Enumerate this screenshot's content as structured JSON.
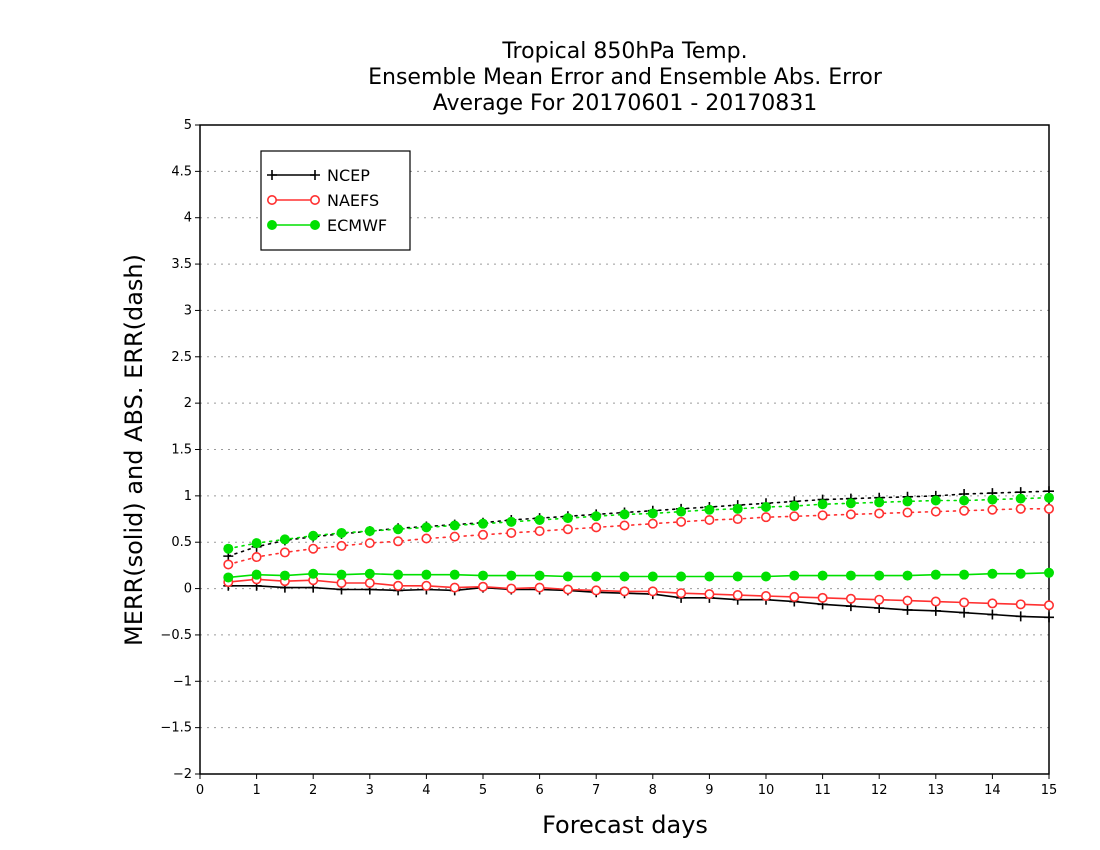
{
  "chart_data": {
    "type": "line",
    "title": [
      "Tropical 850hPa Temp.",
      "Ensemble Mean Error and Ensemble Abs. Error",
      "Average For 20170601 - 20170831"
    ],
    "xlabel": "Forecast days",
    "ylabel": "MERR(solid) and ABS. ERR(dash)",
    "xlim": [
      0,
      15
    ],
    "ylim": [
      -2,
      5
    ],
    "xticks": [
      0,
      1,
      2,
      3,
      4,
      5,
      6,
      7,
      8,
      9,
      10,
      11,
      12,
      13,
      14,
      15
    ],
    "yticks": [
      -2,
      -1.5,
      -1,
      -0.5,
      0,
      0.5,
      1,
      1.5,
      2,
      2.5,
      3,
      3.5,
      4,
      4.5,
      5
    ],
    "grid": "horizontal dotted",
    "legend_position": "top-left",
    "x": [
      0.5,
      1,
      1.5,
      2,
      2.5,
      3,
      3.5,
      4,
      4.5,
      5,
      5.5,
      6,
      6.5,
      7,
      7.5,
      8,
      8.5,
      9,
      9.5,
      10,
      10.5,
      11,
      11.5,
      12,
      12.5,
      13,
      13.5,
      14,
      14.5,
      15
    ],
    "series": [
      {
        "name": "NCEP",
        "color": "#000000",
        "marker": "plus",
        "merr": [
          0.03,
          0.03,
          0.01,
          0.01,
          -0.01,
          -0.01,
          -0.02,
          -0.01,
          -0.02,
          0.01,
          -0.01,
          -0.01,
          -0.02,
          -0.04,
          -0.05,
          -0.06,
          -0.1,
          -0.1,
          -0.12,
          -0.12,
          -0.14,
          -0.17,
          -0.19,
          -0.21,
          -0.23,
          -0.24,
          -0.26,
          -0.28,
          -0.3,
          -0.31
        ],
        "abs_err": [
          0.35,
          0.45,
          0.52,
          0.56,
          0.59,
          0.62,
          0.65,
          0.67,
          0.69,
          0.71,
          0.74,
          0.76,
          0.78,
          0.8,
          0.82,
          0.84,
          0.86,
          0.88,
          0.9,
          0.92,
          0.94,
          0.96,
          0.97,
          0.98,
          0.99,
          1.0,
          1.02,
          1.03,
          1.04,
          1.05
        ]
      },
      {
        "name": "NAEFS",
        "color": "#ff3030",
        "marker": "open-circle",
        "merr": [
          0.07,
          0.1,
          0.08,
          0.09,
          0.06,
          0.06,
          0.03,
          0.03,
          0.01,
          0.02,
          0.0,
          0.01,
          -0.01,
          -0.02,
          -0.03,
          -0.03,
          -0.05,
          -0.06,
          -0.07,
          -0.08,
          -0.09,
          -0.1,
          -0.11,
          -0.12,
          -0.13,
          -0.14,
          -0.15,
          -0.16,
          -0.17,
          -0.18
        ],
        "abs_err": [
          0.26,
          0.34,
          0.39,
          0.43,
          0.46,
          0.49,
          0.51,
          0.54,
          0.56,
          0.58,
          0.6,
          0.62,
          0.64,
          0.66,
          0.68,
          0.7,
          0.72,
          0.74,
          0.75,
          0.77,
          0.78,
          0.79,
          0.8,
          0.81,
          0.82,
          0.83,
          0.84,
          0.85,
          0.86,
          0.86
        ]
      },
      {
        "name": "ECMWF",
        "color": "#00e000",
        "marker": "filled-circle",
        "merr": [
          0.12,
          0.15,
          0.14,
          0.16,
          0.15,
          0.16,
          0.15,
          0.15,
          0.15,
          0.14,
          0.14,
          0.14,
          0.13,
          0.13,
          0.13,
          0.13,
          0.13,
          0.13,
          0.13,
          0.13,
          0.14,
          0.14,
          0.14,
          0.14,
          0.14,
          0.15,
          0.15,
          0.16,
          0.16,
          0.17
        ],
        "abs_err": [
          0.43,
          0.49,
          0.53,
          0.57,
          0.6,
          0.62,
          0.64,
          0.66,
          0.68,
          0.7,
          0.72,
          0.74,
          0.76,
          0.78,
          0.8,
          0.81,
          0.83,
          0.85,
          0.86,
          0.88,
          0.89,
          0.91,
          0.92,
          0.93,
          0.94,
          0.95,
          0.95,
          0.96,
          0.97,
          0.98
        ]
      }
    ]
  }
}
